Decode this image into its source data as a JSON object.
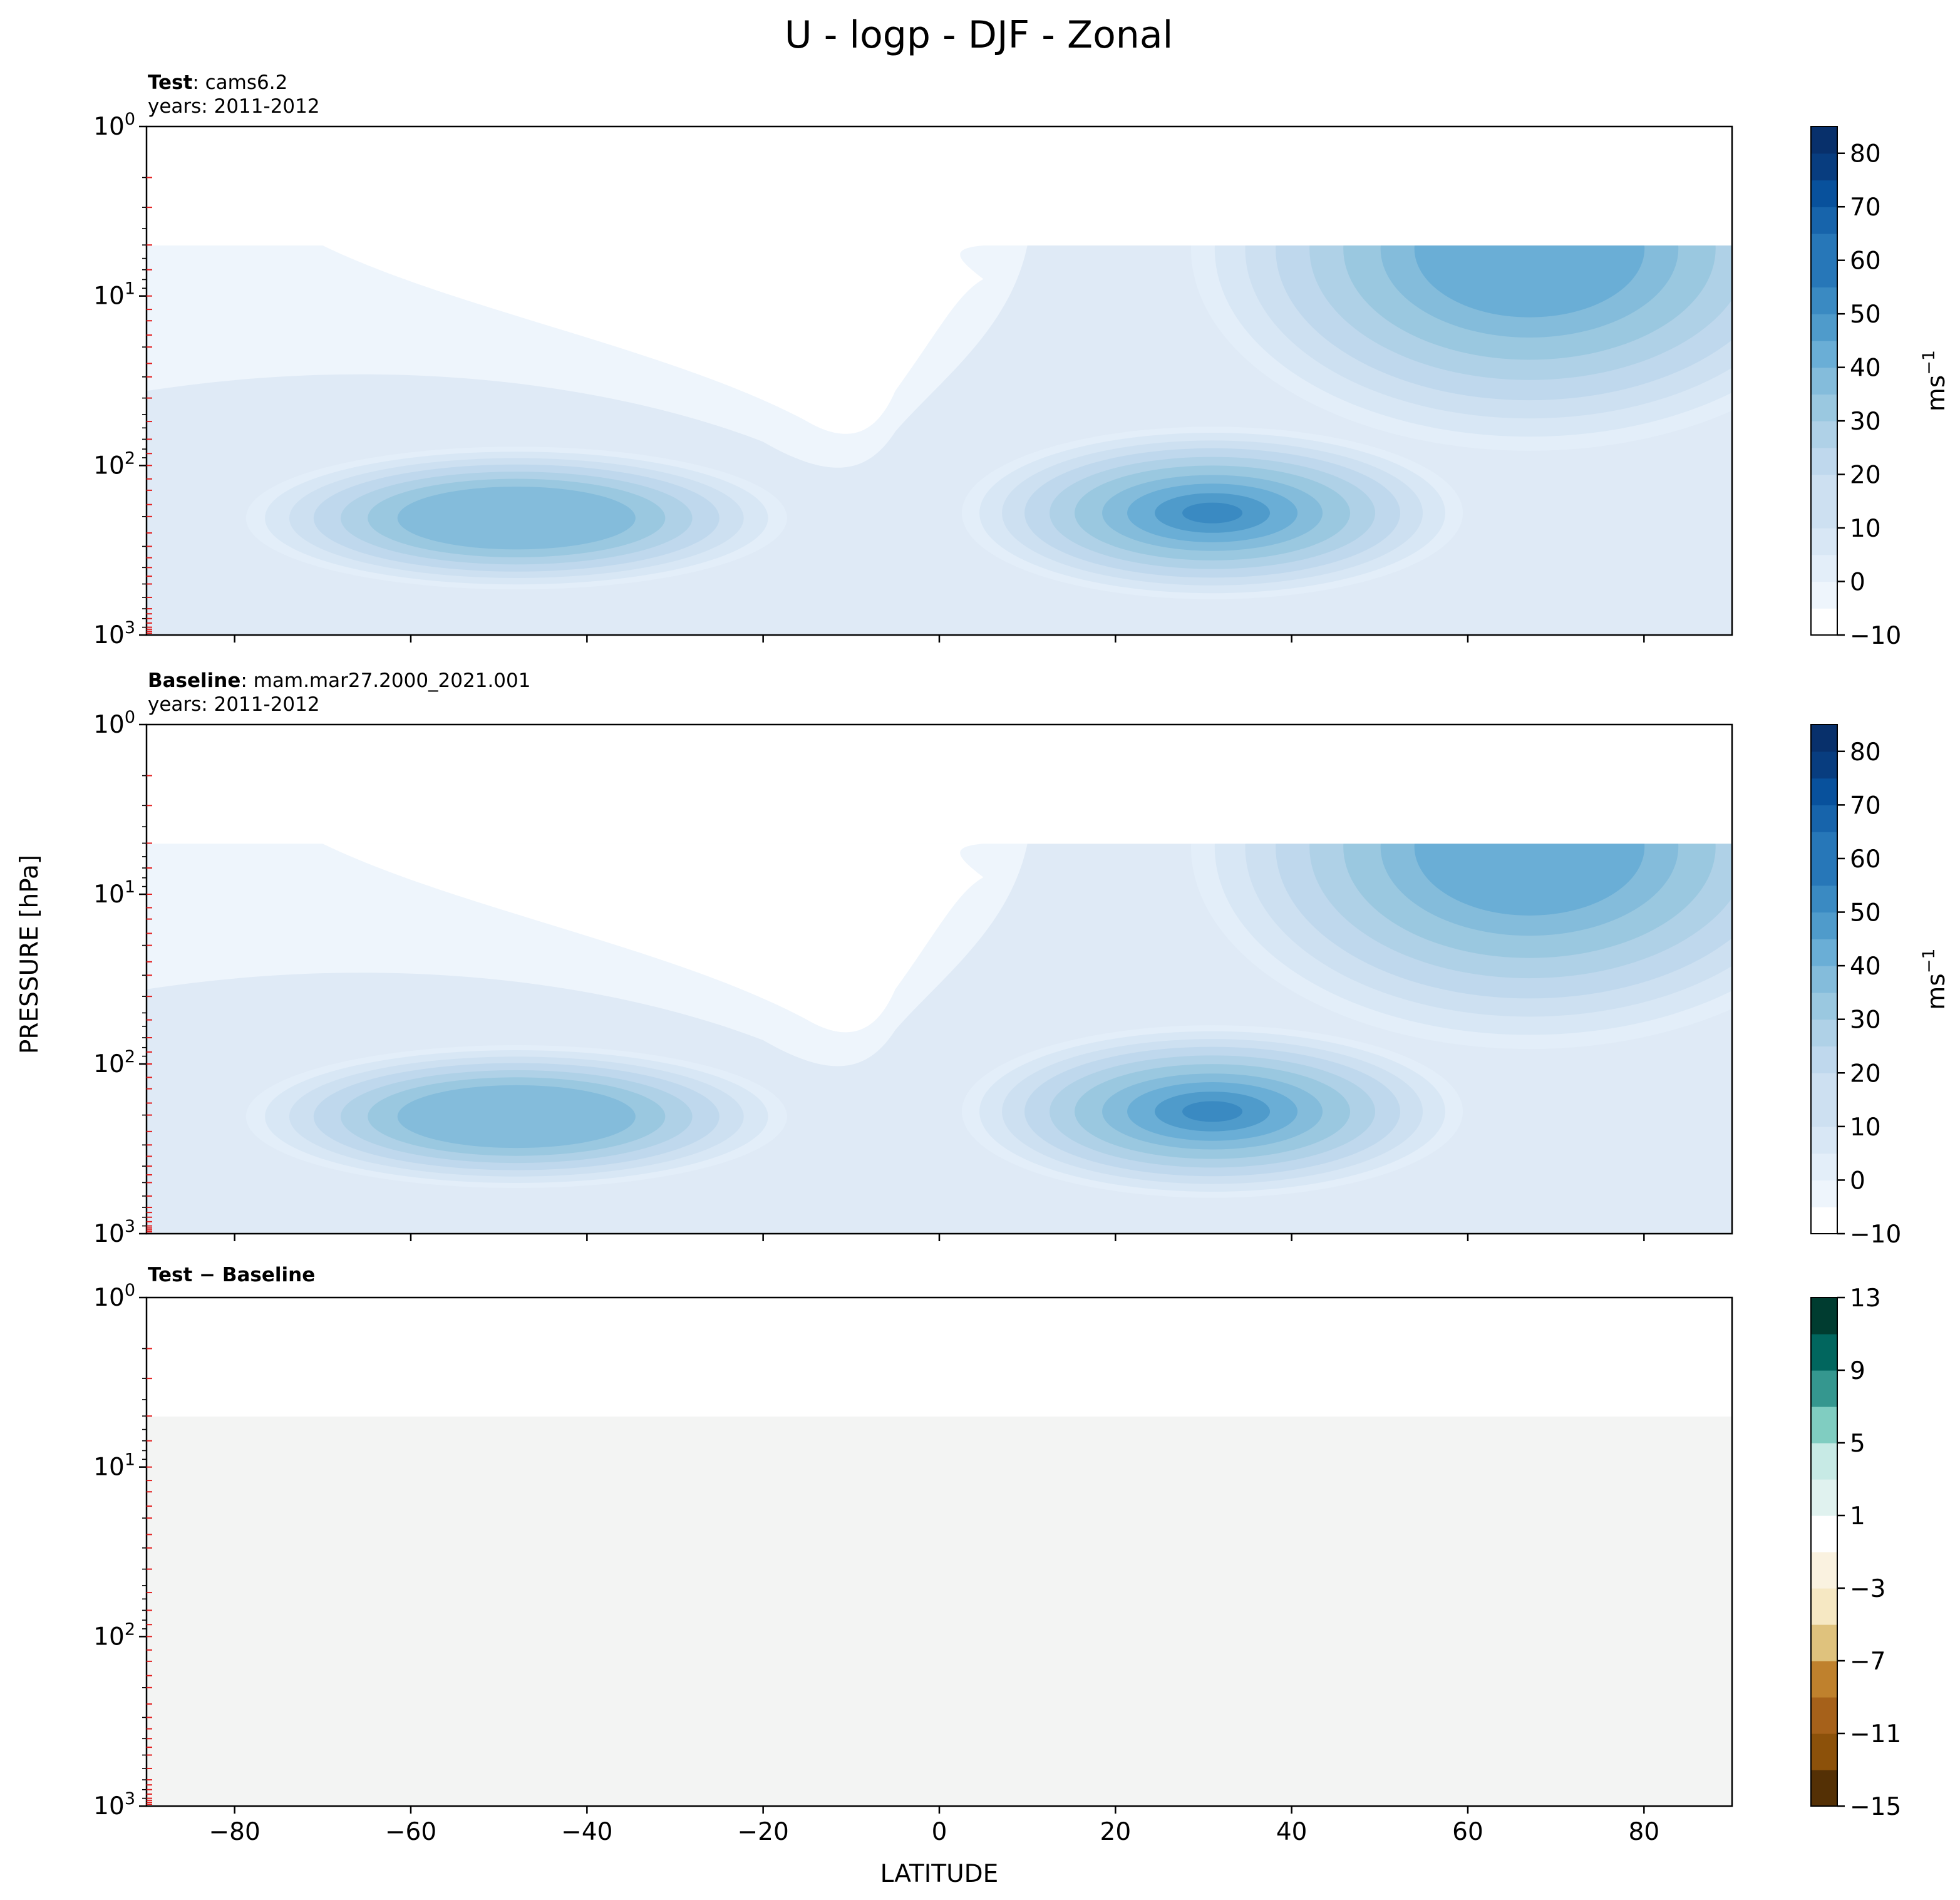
{
  "figure": {
    "title": "U - logp - DJF - Zonal",
    "xlabel": "LATITUDE",
    "ylabel": "PRESSURE [hPa]",
    "colorbar_unit": "ms",
    "colorbar_unit_exp": "−1"
  },
  "panels": [
    {
      "label_bold": "Test",
      "label_rest": ": cams6.2",
      "years": "years: 2011-2012"
    },
    {
      "label_bold": "Baseline",
      "label_rest": ": mam.mar27.2000_2021.001",
      "years": "years: 2011-2012"
    },
    {
      "label_bold": "Test − Baseline",
      "label_rest": "",
      "years": ""
    }
  ],
  "colors": {
    "blues": [
      "#f7fbff",
      "#eef5fc",
      "#e3eef9",
      "#d8e7f5",
      "#cde0f1",
      "#bfd8ed",
      "#afd1e7",
      "#9ac8e0",
      "#84bcdb",
      "#6aaed6",
      "#4f9bcb",
      "#3a8ac2",
      "#2777b8",
      "#1764ab",
      "#08519c",
      "#083d7f",
      "#08306b"
    ],
    "brbg": [
      "#543005",
      "#8c510a",
      "#a6611a",
      "#bf812d",
      "#dfc27d",
      "#f6e8c3",
      "#faf2e0",
      "#ffffff",
      "#e0f2ef",
      "#c7eae5",
      "#80cdc1",
      "#35978f",
      "#01665e",
      "#003c30"
    ],
    "diff_fill": "#f3f4f3"
  },
  "chart_data": [
    {
      "type": "contourf",
      "title": "Test : cams6.2",
      "subtitle": "years: 2011-2012",
      "x_ticks": [
        -80,
        -60,
        -40,
        -20,
        0,
        20,
        40,
        60,
        80
      ],
      "xlim": [
        -90,
        90
      ],
      "ylim": [
        1000,
        1
      ],
      "y_scale": "log",
      "y_ticks": [
        "10^0",
        "10^1",
        "10^2",
        "10^3"
      ],
      "data_top_pressure": 5,
      "features": [
        {
          "name": "SH jet",
          "lat": -47,
          "pressure": 250,
          "max_value": 32
        },
        {
          "name": "NH subtropical jet",
          "lat": 30,
          "pressure": 200,
          "max_value": 42
        },
        {
          "name": "NH polar-night jet",
          "lat": 67,
          "pressure": 5,
          "max_value": 43
        }
      ],
      "colorbar": {
        "unit": "ms^-1",
        "min": -10,
        "max": 85,
        "step": 5,
        "ticks": [
          -10,
          0,
          10,
          20,
          30,
          40,
          50,
          60,
          70,
          80
        ]
      }
    },
    {
      "type": "contourf",
      "title": "Baseline : mam.mar27.2000_2021.001",
      "subtitle": "years: 2011-2012",
      "x_ticks": [
        -80,
        -60,
        -40,
        -20,
        0,
        20,
        40,
        60,
        80
      ],
      "xlim": [
        -90,
        90
      ],
      "ylim": [
        1000,
        1
      ],
      "y_scale": "log",
      "y_ticks": [
        "10^0",
        "10^1",
        "10^2",
        "10^3"
      ],
      "data_top_pressure": 5,
      "features": [
        {
          "name": "SH jet",
          "lat": -47,
          "pressure": 250,
          "max_value": 32
        },
        {
          "name": "NH subtropical jet",
          "lat": 30,
          "pressure": 200,
          "max_value": 42
        },
        {
          "name": "NH polar-night jet",
          "lat": 67,
          "pressure": 5,
          "max_value": 43
        }
      ],
      "colorbar": {
        "unit": "ms^-1",
        "min": -10,
        "max": 85,
        "step": 5,
        "ticks": [
          -10,
          0,
          10,
          20,
          30,
          40,
          50,
          60,
          70,
          80
        ]
      }
    },
    {
      "type": "contourf",
      "title": "Test − Baseline",
      "x_ticks": [
        -80,
        -60,
        -40,
        -20,
        0,
        20,
        40,
        60,
        80
      ],
      "xlim": [
        -90,
        90
      ],
      "ylim": [
        1000,
        1
      ],
      "y_scale": "log",
      "y_ticks": [
        "10^0",
        "10^1",
        "10^2",
        "10^3"
      ],
      "data_top_pressure": 5,
      "features": [
        {
          "name": "uniform difference",
          "value": 0
        }
      ],
      "colorbar": {
        "unit": "",
        "levels": [
          -15,
          -13,
          -11,
          -9,
          -7,
          -5,
          -3,
          -1,
          1,
          3,
          5,
          7,
          9,
          11,
          13
        ],
        "ticks": [
          -15,
          -11,
          -7,
          -3,
          1,
          5,
          9,
          13
        ]
      }
    }
  ]
}
